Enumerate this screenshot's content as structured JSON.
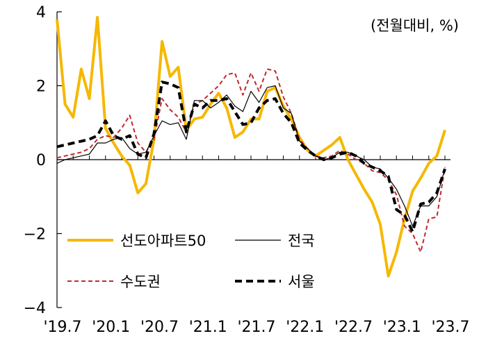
{
  "chart_data": {
    "type": "line",
    "title": "",
    "unit_label": "(전월대비, %)",
    "xlabel": "",
    "ylabel": "",
    "ylim": [
      -4,
      4
    ],
    "yticks": [
      4,
      2,
      0,
      -2,
      -4
    ],
    "ytick_labels": [
      "4",
      "2",
      "0",
      "−2",
      "−4"
    ],
    "x_tick_labels": [
      "'19.7",
      "'20.1",
      "'20.7",
      "'21.1",
      "'21.7",
      "'22.1",
      "'22.7",
      "'23.1",
      "'23.7"
    ],
    "x_tick_index": [
      0,
      6,
      12,
      18,
      24,
      30,
      36,
      42,
      48
    ],
    "x": [
      "2019-07",
      "2019-08",
      "2019-09",
      "2019-10",
      "2019-11",
      "2019-12",
      "2020-01",
      "2020-02",
      "2020-03",
      "2020-04",
      "2020-05",
      "2020-06",
      "2020-07",
      "2020-08",
      "2020-09",
      "2020-10",
      "2020-11",
      "2020-12",
      "2021-01",
      "2021-02",
      "2021-03",
      "2021-04",
      "2021-05",
      "2021-06",
      "2021-07",
      "2021-08",
      "2021-09",
      "2021-10",
      "2021-11",
      "2021-12",
      "2022-01",
      "2022-02",
      "2022-03",
      "2022-04",
      "2022-05",
      "2022-06",
      "2022-07",
      "2022-08",
      "2022-09",
      "2022-10",
      "2022-11",
      "2022-12",
      "2023-01",
      "2023-02",
      "2023-03",
      "2023-04",
      "2023-05",
      "2023-06",
      "2023-07"
    ],
    "grid": false,
    "legend": "bottom-left",
    "series": [
      {
        "name": "선도아파트50",
        "color": "#f5b800",
        "style": "solid-thick",
        "values": [
          3.8,
          1.5,
          1.15,
          2.45,
          1.65,
          3.85,
          0.85,
          0.45,
          0.1,
          -0.15,
          -0.9,
          -0.65,
          0.55,
          3.2,
          2.25,
          2.5,
          0.8,
          1.1,
          1.15,
          1.5,
          1.8,
          1.4,
          0.6,
          0.75,
          1.1,
          1.1,
          1.85,
          1.95,
          1.45,
          1.1,
          0.6,
          0.25,
          0.1,
          0.25,
          0.4,
          0.6,
          0.0,
          -0.4,
          -0.8,
          -1.15,
          -1.75,
          -3.15,
          -2.5,
          -1.6,
          -0.85,
          -0.5,
          -0.1,
          0.1,
          0.8
        ]
      },
      {
        "name": "전국",
        "color": "#000000",
        "style": "solid-thin",
        "values": [
          -0.1,
          0.0,
          0.05,
          0.1,
          0.15,
          0.45,
          0.45,
          0.55,
          0.6,
          0.3,
          0.15,
          0.2,
          0.65,
          1.05,
          0.95,
          1.0,
          0.55,
          1.6,
          1.6,
          1.4,
          1.55,
          1.75,
          1.45,
          1.3,
          1.85,
          1.55,
          1.95,
          2.0,
          1.4,
          1.25,
          0.5,
          0.3,
          0.1,
          0.0,
          0.05,
          0.2,
          0.2,
          0.1,
          0.0,
          -0.2,
          -0.25,
          -0.5,
          -0.8,
          -1.25,
          -1.8,
          -1.25,
          -1.25,
          -1.0,
          -0.25
        ]
      },
      {
        "name": "수도권",
        "color": "#c0282d",
        "style": "dashed-thin",
        "values": [
          0.05,
          0.1,
          0.15,
          0.2,
          0.3,
          0.55,
          0.65,
          0.6,
          0.85,
          1.2,
          0.45,
          0.2,
          0.55,
          1.65,
          1.35,
          1.15,
          0.75,
          1.5,
          1.6,
          1.8,
          2.0,
          2.3,
          2.35,
          1.75,
          2.35,
          1.85,
          2.45,
          2.4,
          1.7,
          1.25,
          0.55,
          0.3,
          0.1,
          0.05,
          0.1,
          0.25,
          0.15,
          0.0,
          -0.1,
          -0.3,
          -0.35,
          -0.55,
          -0.95,
          -1.8,
          -2.0,
          -2.5,
          -1.6,
          -1.55,
          -0.2
        ]
      },
      {
        "name": "서울",
        "color": "#000000",
        "style": "dashed-thick",
        "values": [
          0.35,
          0.4,
          0.45,
          0.5,
          0.55,
          0.65,
          1.05,
          0.65,
          0.55,
          0.65,
          0.15,
          0.05,
          0.7,
          2.1,
          2.05,
          1.95,
          0.75,
          1.5,
          1.4,
          1.6,
          1.6,
          1.65,
          1.3,
          0.95,
          1.0,
          1.4,
          1.6,
          1.65,
          1.25,
          1.0,
          0.45,
          0.25,
          0.1,
          0.0,
          0.05,
          0.15,
          0.2,
          0.1,
          -0.1,
          -0.2,
          -0.3,
          -0.45,
          -1.35,
          -1.5,
          -1.95,
          -1.2,
          -1.15,
          -0.9,
          -0.25
        ]
      }
    ]
  }
}
